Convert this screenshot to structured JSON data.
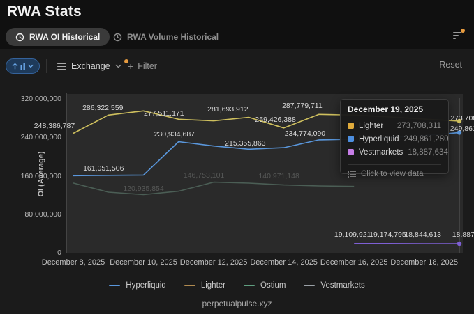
{
  "page": {
    "title": "RWA Stats",
    "footer": "perpetualpulse.xyz"
  },
  "tabs": [
    {
      "label": "RWA OI Historical",
      "active": true
    },
    {
      "label": "RWA Volume Historical",
      "active": false
    }
  ],
  "toolbar": {
    "exchange_label": "Exchange",
    "filter_label": "Filter",
    "reset_label": "Reset",
    "accent_orange": "#e79b3f"
  },
  "tooltip": {
    "date": "December 19, 2025",
    "rows": [
      {
        "name": "Lighter",
        "value": "273,708,311",
        "color": "#e0ab3c"
      },
      {
        "name": "Hyperliquid",
        "value": "249,861,280",
        "color": "#4d8fe0"
      },
      {
        "name": "Vestmarkets",
        "value": "18,887,634",
        "color": "#c77ee8"
      }
    ],
    "action": "Click to view data"
  },
  "legend": [
    {
      "label": "Hyperliquid",
      "color": "#5a97dc"
    },
    {
      "label": "Lighter",
      "color": "#b08a50"
    },
    {
      "label": "Ostium",
      "color": "#5f9e7f"
    },
    {
      "label": "Vestmarkets",
      "color": "#9aa0a6"
    }
  ],
  "chart_data": {
    "type": "line",
    "ylabel": "OI (Average)",
    "ylim": [
      0,
      320000000
    ],
    "grid": false,
    "x_dates": [
      "December 8, 2025",
      "December 9, 2025",
      "December 10, 2025",
      "December 11, 2025",
      "December 12, 2025",
      "December 13, 2025",
      "December 14, 2025",
      "December 15, 2025",
      "December 16, 2025",
      "December 17, 2025",
      "December 18, 2025",
      "December 19, 2025"
    ],
    "x_tick_indices": [
      0,
      2,
      4,
      6,
      8,
      10
    ],
    "y_ticks": [
      {
        "value": 0,
        "label": "0"
      },
      {
        "value": 80000000,
        "label": "80,000,000"
      },
      {
        "value": 160000000,
        "label": "160,000,000"
      },
      {
        "value": 240000000,
        "label": "240,000,000"
      },
      {
        "value": 320000000,
        "label": "320,000,000"
      }
    ],
    "crosshair_index": 11,
    "series": [
      {
        "name": "Lighter",
        "color": "#cfc05e",
        "start_index": 0,
        "end_dot": true,
        "values": [
          248386787,
          286322559,
          295000000,
          277511171,
          274200000,
          281693912,
          259426388,
          287779711,
          286300000,
          282500000,
          277800000,
          273708311
        ],
        "labels": [
          {
            "index": 0,
            "text": "248,386,787",
            "dx": -27,
            "dy": -10
          },
          {
            "index": 1,
            "text": "286,322,559",
            "dx": -8,
            "dy": -10
          },
          {
            "index": 3,
            "text": "277,511,171",
            "dx": -21,
            "dy": -8
          },
          {
            "index": 5,
            "text": "281,693,912",
            "dx": -30,
            "dy": -11
          },
          {
            "index": 6,
            "text": "259,426,388",
            "dx": -12,
            "dy": -12
          },
          {
            "index": 7,
            "text": "287,779,711",
            "dx": -24,
            "dy": -12
          },
          {
            "index": 11,
            "text": "273,708,311",
            "dx": 16,
            "dy": -4,
            "front": true
          }
        ]
      },
      {
        "name": "Hyperliquid",
        "color": "#5a97dc",
        "start_index": 0,
        "end_dot": true,
        "values": [
          160300000,
          161051506,
          161600000,
          230934687,
          222000000,
          215355863,
          218500000,
          234774090,
          236200000,
          239800000,
          243500000,
          249861280
        ],
        "labels": [
          {
            "index": 1,
            "text": "161,051,506",
            "dx": -7,
            "dy": -10
          },
          {
            "index": 3,
            "text": "230,934,687",
            "dx": -6,
            "dy": -11
          },
          {
            "index": 5,
            "text": "215,355,863",
            "dx": -5,
            "dy": -8
          },
          {
            "index": 7,
            "text": "234,774,090",
            "dx": -20,
            "dy": -9
          },
          {
            "index": 11,
            "text": "249,861,280",
            "dx": 16,
            "dy": -5,
            "front": true
          }
        ]
      },
      {
        "name": "Ostium",
        "color": "#546b60",
        "start_index": 0,
        "end_dot": false,
        "line_opacity": 0.8,
        "values": [
          145000000,
          126000000,
          120935854,
          128000000,
          146753101,
          144800000,
          140971148,
          139000000,
          138000000
        ],
        "labels": [
          {
            "index": 2,
            "text": "120,935,854",
            "dx": 0,
            "dy": -8,
            "faint": true
          },
          {
            "index": 4,
            "text": "146,753,101",
            "dx": -14,
            "dy": -10,
            "faint": true
          },
          {
            "index": 6,
            "text": "140,971,148",
            "dx": -7,
            "dy": -13,
            "faint": true
          }
        ]
      },
      {
        "name": "Vestmarkets",
        "color": "#7e5fd4",
        "start_index": 8,
        "end_dot": true,
        "values": [
          19109921,
          19174795,
          18844613,
          18887634
        ],
        "labels": [
          {
            "index": 8,
            "text": "19,109,921",
            "dx": -2,
            "dy": -13
          },
          {
            "index": 9,
            "text": "19,174,795",
            "dx": -2,
            "dy": -13
          },
          {
            "index": 10,
            "text": "18,844,613",
            "dx": -2,
            "dy": -13
          },
          {
            "index": 11,
            "text": "18,887,634",
            "dx": 16,
            "dy": -13,
            "front": true
          }
        ]
      }
    ]
  }
}
